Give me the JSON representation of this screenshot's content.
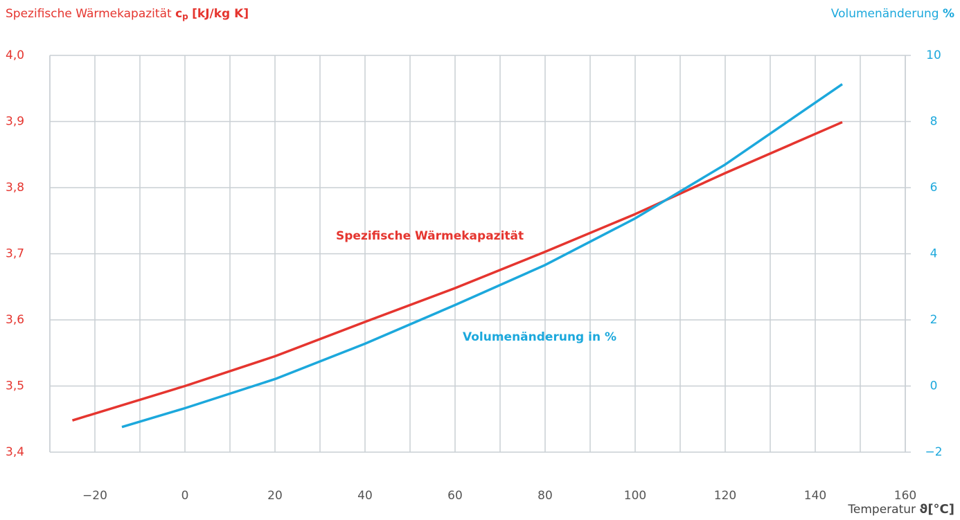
{
  "chart_data": {
    "type": "line",
    "ylabel": "Spezifische Wärmekapazität",
    "ylabel_symbol": "c",
    "ylabel_subscript": "p",
    "ylabel_unit": "[kJ/kg K]",
    "y2label": "Volumenänderung",
    "y2label_unit": "%",
    "xlabel": "Temperatur",
    "xlabel_symbol": "ϑ",
    "xlabel_unit": "[°C]",
    "xlim": [
      -30,
      160
    ],
    "xticks": [
      {
        "value": -20,
        "label": "−20"
      },
      0,
      20,
      40,
      60,
      80,
      100,
      120,
      140,
      160
    ],
    "xminorticks": [
      -30,
      -10,
      10,
      30,
      50,
      70,
      90,
      110,
      130,
      150
    ],
    "ylim": [
      3.4,
      4.0
    ],
    "yticks": [
      {
        "value": 3.4,
        "label": "3,4"
      },
      {
        "value": 3.5,
        "label": "3,5"
      },
      {
        "value": 3.6,
        "label": "3,6"
      },
      {
        "value": 3.7,
        "label": "3,7"
      },
      {
        "value": 3.8,
        "label": "3,8"
      },
      {
        "value": 3.9,
        "label": "3,9"
      },
      {
        "value": 4.0,
        "label": "4,0"
      }
    ],
    "y2lim": [
      -2,
      10
    ],
    "y2ticks": [
      {
        "value": -2,
        "label": "−2"
      },
      0,
      2,
      4,
      6,
      8,
      10
    ],
    "grid": true,
    "series": [
      {
        "name": "Spezifische Wärmekapazität",
        "color": "#e5352f",
        "x": [
          -25,
          0,
          20,
          40,
          60,
          80,
          100,
          120,
          146
        ],
        "values": [
          3.448,
          3.5,
          3.545,
          3.597,
          3.648,
          3.703,
          3.76,
          3.822,
          3.899
        ]
      },
      {
        "name": "Volumenänderung in %",
        "color": "#1ca8dc",
        "axis": "y2",
        "x": [
          -14,
          0,
          20,
          40,
          60,
          80,
          100,
          120,
          146
        ],
        "values": [
          -1.24,
          -0.67,
          0.21,
          1.28,
          2.45,
          3.66,
          5.07,
          6.7,
          9.13
        ]
      }
    ]
  }
}
